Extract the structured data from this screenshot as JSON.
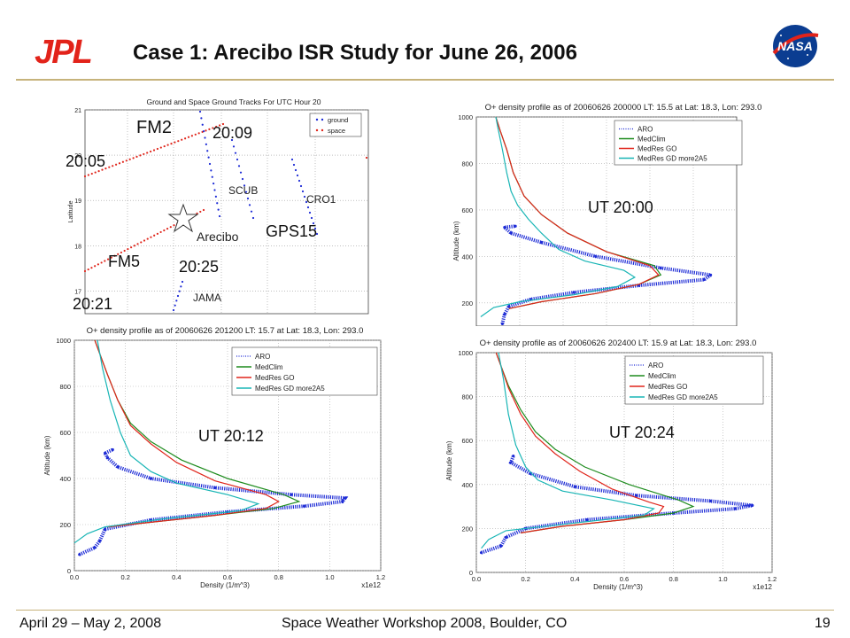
{
  "slide": {
    "title": "Case 1: Arecibo ISR Study for June 26, 2006",
    "footer_left": "April 29 – May 2, 2008",
    "footer_center": "Space Weather Workshop 2008, Boulder, CO",
    "footer_right": "19",
    "logo_left": "JPL",
    "logo_right": "NASA",
    "accent_color": "#c6b37b"
  },
  "chart_data": [
    {
      "type": "scatter",
      "title": "Ground and Space Ground Tracks For UTC Hour 20",
      "xlabel": "",
      "ylabel": "Latitude",
      "ylim": [
        16.5,
        21
      ],
      "yticks": [
        "17",
        "18",
        "19",
        "20",
        "21"
      ],
      "legend": {
        "placement": "top-right",
        "entries": [
          "ground",
          "space"
        ]
      },
      "legend_colors": {
        "ground": "#1d2bd6",
        "space": "#e0251b"
      },
      "labels": {
        "fm2": "FM2",
        "t2009": "20:09",
        "t2005": "20:05",
        "scub": "SCUB",
        "cro1": "CRO1",
        "arecibo": "Arecibo",
        "gps15": "GPS15",
        "fm5": "FM5",
        "t2025": "20:25",
        "jama": "JAMA",
        "t2021": "20:21"
      }
    },
    {
      "type": "line",
      "title": "O+ density profile as of 20060626 200000 LT: 15.5 at Lat: 18.3, Lon: 293.0",
      "annotation": "UT 20:00",
      "xlabel": "",
      "ylabel": "Altitude (km)",
      "xlim": [
        0,
        1.2
      ],
      "ylim": [
        100,
        1000
      ],
      "yticks": [
        "200",
        "400",
        "600",
        "800",
        "1000"
      ],
      "legend": [
        "ARO",
        "MedClim",
        "MedRes GO",
        "MedRes GD more2A5"
      ],
      "series": [
        {
          "name": "ARO",
          "color": "#1d2bd6",
          "x": [
            0.12,
            0.13,
            0.15,
            0.25,
            0.45,
            0.75,
            1.05,
            1.08,
            0.85,
            0.55,
            0.3,
            0.16,
            0.13,
            0.18
          ],
          "y": [
            110,
            150,
            185,
            215,
            245,
            275,
            300,
            320,
            350,
            400,
            460,
            500,
            525,
            530
          ]
        },
        {
          "name": "MedClim",
          "color": "#1e8c1e",
          "x": [
            0.15,
            0.3,
            0.55,
            0.75,
            0.85,
            0.82,
            0.6,
            0.42,
            0.3,
            0.22,
            0.17,
            0.14,
            0.11,
            0.09
          ],
          "y": [
            175,
            205,
            240,
            280,
            320,
            360,
            420,
            500,
            580,
            660,
            760,
            860,
            940,
            1000
          ]
        },
        {
          "name": "MedRes GO",
          "color": "#e0251b",
          "x": [
            0.15,
            0.3,
            0.55,
            0.75,
            0.84,
            0.8,
            0.6,
            0.42,
            0.3,
            0.22,
            0.17,
            0.14,
            0.11,
            0.09
          ],
          "y": [
            175,
            205,
            240,
            280,
            320,
            360,
            420,
            500,
            580,
            660,
            760,
            860,
            940,
            1000
          ]
        },
        {
          "name": "MedRes GD more2A5",
          "color": "#18b5b5",
          "x": [
            0.02,
            0.08,
            0.2,
            0.45,
            0.65,
            0.73,
            0.68,
            0.5,
            0.38,
            0.3,
            0.24,
            0.19,
            0.16,
            0.14,
            0.12,
            0.1,
            0.09
          ],
          "y": [
            140,
            180,
            205,
            235,
            270,
            310,
            340,
            380,
            430,
            500,
            560,
            620,
            680,
            760,
            860,
            950,
            1000
          ]
        }
      ]
    },
    {
      "type": "line",
      "title": "O+ density profile as of 20060626 201200 LT: 15.7 at Lat: 18.3, Lon: 293.0",
      "annotation": "UT 20:12",
      "xlabel": "Density (1/m^3)",
      "ylabel": "Altitude (km)",
      "xlim": [
        0,
        1.2
      ],
      "ylim": [
        0,
        1000
      ],
      "xticks": [
        "0.0",
        "0.2",
        "0.4",
        "0.6",
        "0.8",
        "1.0",
        "1.2"
      ],
      "yticks": [
        "0",
        "200",
        "400",
        "600",
        "800",
        "1000"
      ],
      "xscale_note": "x1e12",
      "legend": [
        "ARO",
        "MedClim",
        "MedRes GO",
        "MedRes GD more2A5"
      ],
      "series": [
        {
          "name": "ARO",
          "color": "#1d2bd6",
          "x": [
            0.02,
            0.08,
            0.1,
            0.12,
            0.3,
            0.6,
            0.9,
            1.05,
            1.06,
            0.85,
            0.55,
            0.3,
            0.17,
            0.13,
            0.12,
            0.15
          ],
          "y": [
            70,
            100,
            130,
            180,
            220,
            255,
            280,
            300,
            315,
            330,
            360,
            400,
            450,
            490,
            510,
            525
          ]
        },
        {
          "name": "MedClim",
          "color": "#1e8c1e",
          "x": [
            0.13,
            0.3,
            0.55,
            0.78,
            0.88,
            0.82,
            0.6,
            0.42,
            0.3,
            0.22,
            0.17,
            0.13,
            0.1,
            0.08
          ],
          "y": [
            190,
            210,
            240,
            270,
            300,
            330,
            400,
            480,
            560,
            640,
            740,
            850,
            940,
            1000
          ]
        },
        {
          "name": "MedRes GO",
          "color": "#e0251b",
          "x": [
            0.13,
            0.3,
            0.55,
            0.75,
            0.8,
            0.75,
            0.55,
            0.4,
            0.3,
            0.22,
            0.17,
            0.13,
            0.1,
            0.08
          ],
          "y": [
            190,
            210,
            240,
            270,
            300,
            330,
            390,
            470,
            550,
            630,
            740,
            850,
            940,
            1000
          ]
        },
        {
          "name": "MedRes GD more2A5",
          "color": "#18b5b5",
          "x": [
            0.0,
            0.05,
            0.12,
            0.35,
            0.65,
            0.72,
            0.6,
            0.4,
            0.3,
            0.22,
            0.18,
            0.14,
            0.11,
            0.09
          ],
          "y": [
            120,
            160,
            190,
            225,
            260,
            290,
            330,
            380,
            430,
            500,
            600,
            740,
            880,
            1000
          ]
        }
      ]
    },
    {
      "type": "line",
      "title": "O+ density profile as of 20060626 202400 LT: 15.9 at Lat: 18.3, Lon: 293.0",
      "annotation": "UT 20:24",
      "xlabel": "Density (1/m^3)",
      "ylabel": "Altitude (km)",
      "xlim": [
        0,
        1.2
      ],
      "ylim": [
        0,
        1000
      ],
      "xticks": [
        "0.0",
        "0.2",
        "0.4",
        "0.6",
        "0.8",
        "1.0",
        "1.2"
      ],
      "yticks": [
        "0",
        "200",
        "400",
        "600",
        "800",
        "1000"
      ],
      "xscale_note": "x1e12",
      "legend": [
        "ARO",
        "MedClim",
        "MedRes GO",
        "MedRes GD more2A5"
      ],
      "series": [
        {
          "name": "ARO",
          "color": "#1d2bd6",
          "x": [
            0.02,
            0.1,
            0.12,
            0.2,
            0.45,
            0.8,
            1.05,
            1.12,
            0.95,
            0.65,
            0.4,
            0.22,
            0.14,
            0.15
          ],
          "y": [
            90,
            120,
            160,
            200,
            240,
            270,
            290,
            305,
            325,
            350,
            390,
            450,
            500,
            530
          ]
        },
        {
          "name": "MedClim",
          "color": "#1e8c1e",
          "x": [
            0.18,
            0.35,
            0.6,
            0.8,
            0.88,
            0.82,
            0.62,
            0.44,
            0.32,
            0.24,
            0.18,
            0.13,
            0.1,
            0.08
          ],
          "y": [
            180,
            210,
            240,
            270,
            300,
            330,
            400,
            480,
            560,
            640,
            740,
            850,
            940,
            1000
          ]
        },
        {
          "name": "MedRes GO",
          "color": "#e0251b",
          "x": [
            0.18,
            0.35,
            0.6,
            0.74,
            0.76,
            0.7,
            0.55,
            0.42,
            0.32,
            0.24,
            0.18,
            0.13,
            0.1,
            0.08
          ],
          "y": [
            180,
            210,
            240,
            270,
            300,
            320,
            380,
            460,
            540,
            620,
            720,
            840,
            940,
            1000
          ]
        },
        {
          "name": "MedRes GD more2A5",
          "color": "#18b5b5",
          "x": [
            0.02,
            0.05,
            0.12,
            0.4,
            0.68,
            0.72,
            0.55,
            0.35,
            0.25,
            0.2,
            0.16,
            0.13,
            0.11,
            0.09
          ],
          "y": [
            110,
            150,
            190,
            225,
            260,
            290,
            330,
            370,
            420,
            480,
            580,
            720,
            880,
            1000
          ]
        }
      ]
    }
  ]
}
